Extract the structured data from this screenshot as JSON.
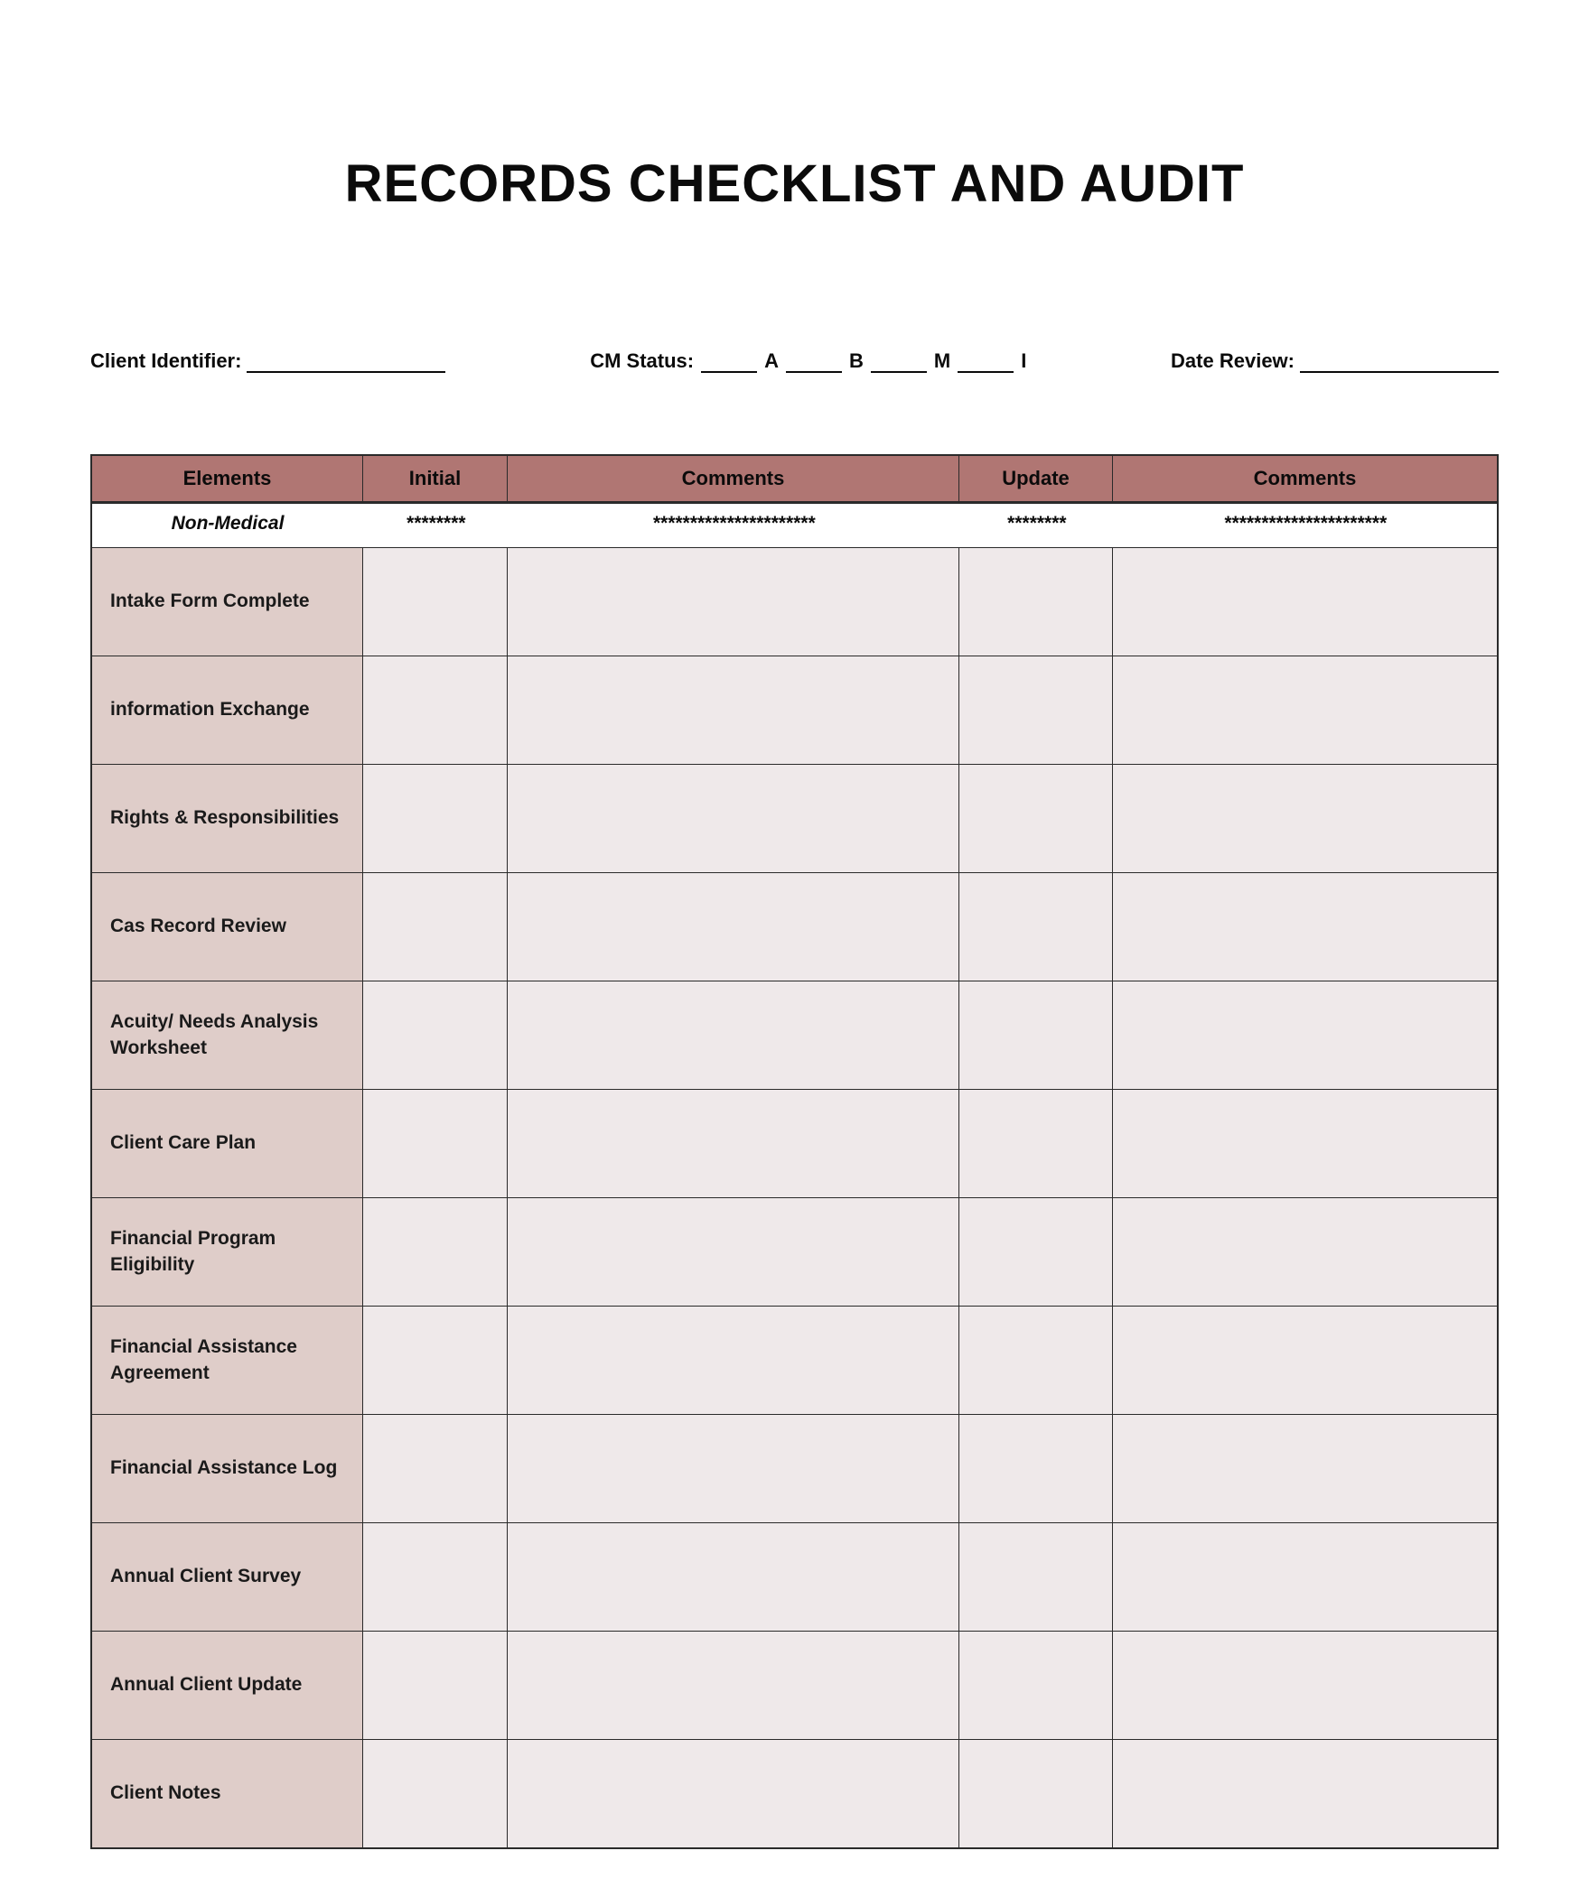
{
  "title": "RECORDS CHECKLIST AND AUDIT",
  "info": {
    "client_identifier_label": "Client Identifier:",
    "cm_status_label": "CM Status:",
    "cm_options": {
      "a": "A",
      "b": "B",
      "m": "M",
      "i": "I"
    },
    "date_review_label": "Date Review:"
  },
  "table": {
    "headers": {
      "elements": "Elements",
      "initial": "Initial",
      "comments1": "Comments",
      "update": "Update",
      "comments2": "Comments"
    },
    "section": {
      "label": "Non-Medical",
      "fill_short": "********",
      "fill_long": "**********************"
    },
    "rows": [
      {
        "label": "Intake Form Complete"
      },
      {
        "label": "information Exchange"
      },
      {
        "label": "Rights & Responsibilities"
      },
      {
        "label": "Cas Record Review"
      },
      {
        "label": "Acuity/ Needs Analysis Worksheet"
      },
      {
        "label": "Client Care Plan"
      },
      {
        "label": "Financial Program Eligibility"
      },
      {
        "label": "Financial Assistance Agreement"
      },
      {
        "label": "Financial Assistance Log"
      },
      {
        "label": "Annual Client Survey"
      },
      {
        "label": "Annual Client Update"
      },
      {
        "label": "Client Notes"
      }
    ],
    "colors": {
      "header_bg": "#b07673",
      "elements_bg": "#dfcdc9",
      "cell_bg": "#efe9ea",
      "border": "#2a2a2a",
      "page_bg": "#ffffff",
      "text": "#0b0b0b"
    }
  }
}
